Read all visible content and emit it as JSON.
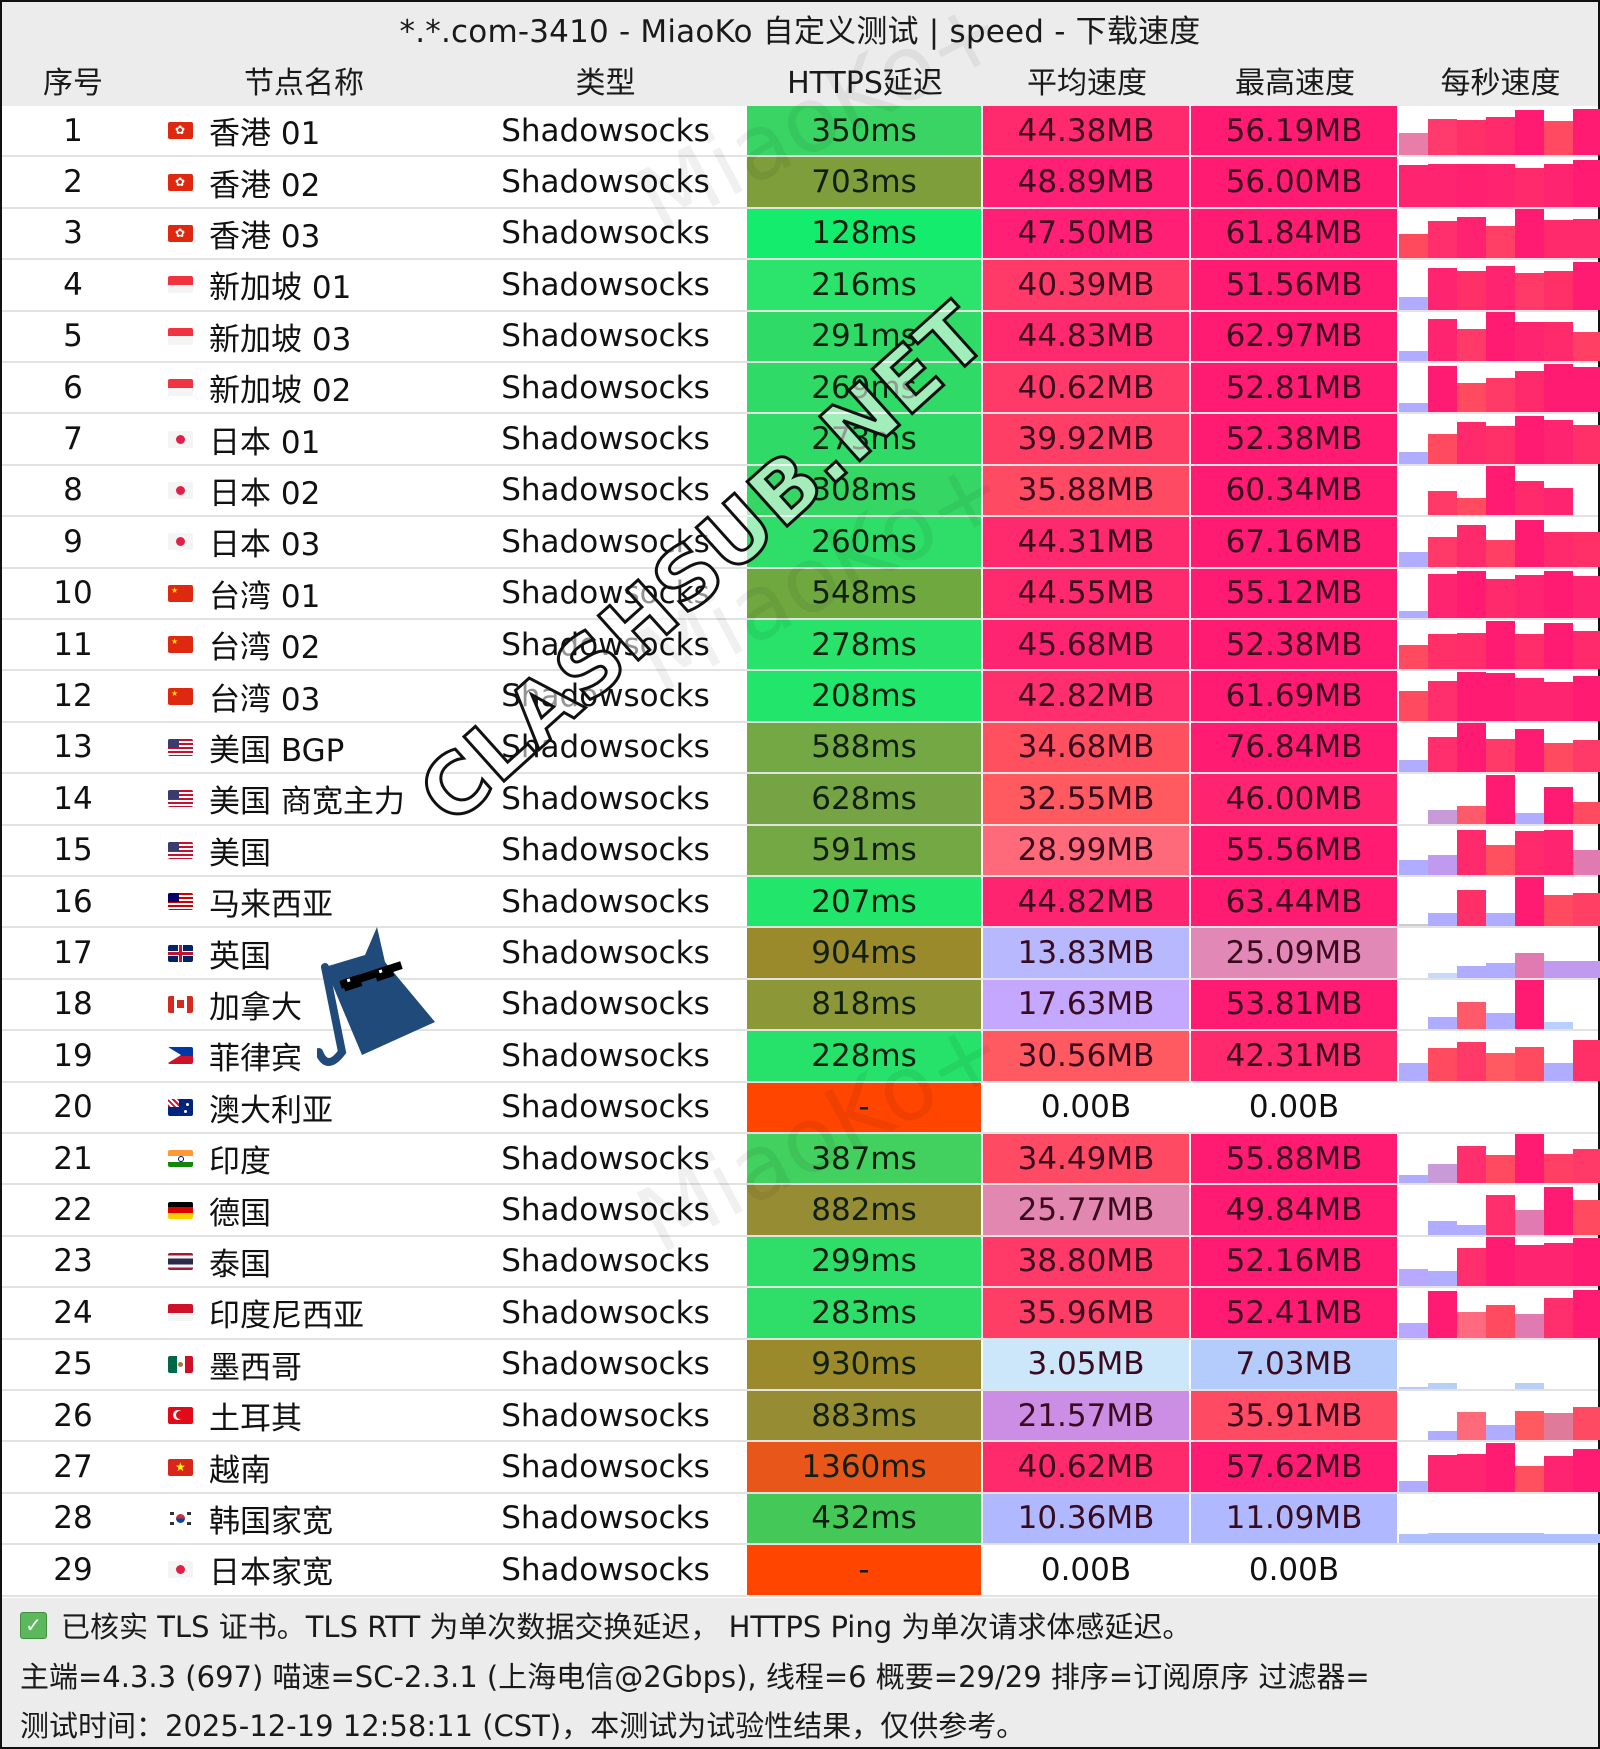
{
  "title": "*.*.com-3410 - MiaoKo 自定义测试 | speed - 下载速度",
  "columns": {
    "index": "序号",
    "name": "节点名称",
    "type": "类型",
    "ping": "HTTPS延迟",
    "avg": "平均速度",
    "max": "最高速度",
    "per_sec": "每秒速度"
  },
  "colors": {
    "ping_good": "#2fdc6a",
    "ping_mid": "#7ca83c",
    "ping_slow": "#9a8a2e",
    "ping_fail": "#ff4500",
    "speed_high": "#ff1f75",
    "speed_mid": "#ff5a6a",
    "speed_low": "#b4b4ff",
    "bar_low": "#b0acff"
  },
  "rows": [
    {
      "index": "1",
      "flag": "hk",
      "name": "香港 01",
      "type": "Shadowsocks",
      "ping": "350ms",
      "ping_color": "#3ad464",
      "avg": "44.38MB",
      "avg_color": "#ff2a6e",
      "max": "56.19MB",
      "max_color": "#ff1a72",
      "bars": [
        [
          0.45,
          "#e87ea8"
        ],
        [
          0.75,
          "#ff3a6c"
        ],
        [
          0.73,
          "#ff3068"
        ],
        [
          0.78,
          "#ff2a6c"
        ],
        [
          0.93,
          "#ff1a72"
        ],
        [
          0.7,
          "#ff4a62"
        ],
        [
          0.95,
          "#ff1a72"
        ]
      ]
    },
    {
      "index": "2",
      "flag": "hk",
      "name": "香港 02",
      "type": "Shadowsocks",
      "ping": "703ms",
      "ping_color": "#7d9e3a",
      "avg": "48.89MB",
      "avg_color": "#ff1f74",
      "max": "56.00MB",
      "max_color": "#ff1a72",
      "bars": [
        [
          0.85,
          "#ff2470"
        ],
        [
          0.87,
          "#ff2470"
        ],
        [
          0.87,
          "#ff2070"
        ],
        [
          0.87,
          "#ff2470"
        ],
        [
          0.8,
          "#ff2a6c"
        ],
        [
          0.88,
          "#ff2470"
        ],
        [
          0.95,
          "#ff1a72"
        ]
      ]
    },
    {
      "index": "3",
      "flag": "hk",
      "name": "香港 03",
      "type": "Shadowsocks",
      "ping": "128ms",
      "ping_color": "#14ec6e",
      "avg": "47.50MB",
      "avg_color": "#ff1f74",
      "max": "61.84MB",
      "max_color": "#ff1a72",
      "bars": [
        [
          0.5,
          "#ff4a5e"
        ],
        [
          0.75,
          "#ff2e6c"
        ],
        [
          0.85,
          "#ff2270"
        ],
        [
          0.65,
          "#ff4064"
        ],
        [
          1.0,
          "#ff1a72"
        ],
        [
          0.78,
          "#ff2a6c"
        ],
        [
          0.8,
          "#ff2a6c"
        ]
      ]
    },
    {
      "index": "4",
      "flag": "sg",
      "name": "新加坡 01",
      "type": "Shadowsocks",
      "ping": "216ms",
      "ping_color": "#2ce46c",
      "avg": "40.39MB",
      "avg_color": "#ff3a68",
      "max": "51.56MB",
      "max_color": "#ff1a72",
      "bars": [
        [
          0.25,
          "#b0acff"
        ],
        [
          0.85,
          "#ff2470"
        ],
        [
          0.78,
          "#ff3068"
        ],
        [
          0.88,
          "#ff2470"
        ],
        [
          0.75,
          "#ff3a68"
        ],
        [
          0.78,
          "#ff3068"
        ],
        [
          0.98,
          "#ff1a72"
        ]
      ]
    },
    {
      "index": "5",
      "flag": "sg",
      "name": "新加坡 03",
      "type": "Shadowsocks",
      "ping": "291ms",
      "ping_color": "#30da66",
      "avg": "44.83MB",
      "avg_color": "#ff2a6e",
      "max": "62.97MB",
      "max_color": "#ff1a72",
      "bars": [
        [
          0.2,
          "#b0acff"
        ],
        [
          0.85,
          "#ff2470"
        ],
        [
          0.65,
          "#ff3a68"
        ],
        [
          1.0,
          "#ff1a72"
        ],
        [
          0.8,
          "#ff2470"
        ],
        [
          0.8,
          "#ff2a6c"
        ],
        [
          0.6,
          "#ff4064"
        ]
      ]
    },
    {
      "index": "6",
      "flag": "sg",
      "name": "新加坡 02",
      "type": "Shadowsocks",
      "ping": "269ms",
      "ping_color": "#30da66",
      "avg": "40.62MB",
      "avg_color": "#ff3a68",
      "max": "52.81MB",
      "max_color": "#ff1a72",
      "bars": [
        [
          0.2,
          "#b0acff"
        ],
        [
          0.95,
          "#ff1a72"
        ],
        [
          0.6,
          "#ff4a60"
        ],
        [
          0.7,
          "#ff3a66"
        ],
        [
          0.85,
          "#ff2a6c"
        ],
        [
          0.98,
          "#ff1a72"
        ],
        [
          0.93,
          "#ff1a72"
        ]
      ]
    },
    {
      "index": "7",
      "flag": "jp",
      "name": "日本 01",
      "type": "Shadowsocks",
      "ping": "273ms",
      "ping_color": "#30da66",
      "avg": "39.92MB",
      "avg_color": "#ff3e66",
      "max": "52.38MB",
      "max_color": "#ff1a72",
      "bars": [
        [
          0.25,
          "#b0acff"
        ],
        [
          0.6,
          "#ff4a60"
        ],
        [
          0.85,
          "#ff2a6c"
        ],
        [
          0.78,
          "#ff3068"
        ],
        [
          0.98,
          "#ff1a72"
        ],
        [
          0.9,
          "#ff2470"
        ],
        [
          0.8,
          "#ff3068"
        ]
      ]
    },
    {
      "index": "8",
      "flag": "jp",
      "name": "日本 02",
      "type": "Shadowsocks",
      "ping": "308ms",
      "ping_color": "#36d664",
      "avg": "35.88MB",
      "avg_color": "#ff4a64",
      "max": "60.34MB",
      "max_color": "#ff1a72",
      "bars": [
        [
          0.0,
          "#ffffff"
        ],
        [
          0.5,
          "#ff3a68"
        ],
        [
          0.35,
          "#ff4a60"
        ],
        [
          1.0,
          "#ff1a72"
        ],
        [
          0.7,
          "#ff2a6c"
        ],
        [
          0.55,
          "#ff2470"
        ],
        [
          0.0,
          "#ffffff"
        ]
      ]
    },
    {
      "index": "9",
      "flag": "jp",
      "name": "日本 03",
      "type": "Shadowsocks",
      "ping": "260ms",
      "ping_color": "#2ede68",
      "avg": "44.31MB",
      "avg_color": "#ff2a6e",
      "max": "67.16MB",
      "max_color": "#ff1a72",
      "bars": [
        [
          0.3,
          "#b0acff"
        ],
        [
          0.6,
          "#ff3a68"
        ],
        [
          0.85,
          "#ff2a6c"
        ],
        [
          0.55,
          "#ff4064"
        ],
        [
          0.95,
          "#ff1a72"
        ],
        [
          0.7,
          "#ff2a6c"
        ],
        [
          0.7,
          "#ff3068"
        ]
      ]
    },
    {
      "index": "10",
      "flag": "cn",
      "name": "台湾 01",
      "type": "Shadowsocks",
      "ping": "548ms",
      "ping_color": "#70a840",
      "avg": "44.55MB",
      "avg_color": "#ff2a6e",
      "max": "55.12MB",
      "max_color": "#ff1a72",
      "bars": [
        [
          0.15,
          "#b0acff"
        ],
        [
          0.9,
          "#ff2470"
        ],
        [
          0.95,
          "#ff1a72"
        ],
        [
          0.8,
          "#ff2a6c"
        ],
        [
          0.88,
          "#ff2470"
        ],
        [
          0.95,
          "#ff1a72"
        ],
        [
          0.85,
          "#ff2470"
        ]
      ]
    },
    {
      "index": "11",
      "flag": "cn",
      "name": "台湾 02",
      "type": "Shadowsocks",
      "ping": "278ms",
      "ping_color": "#28e26a",
      "avg": "45.68MB",
      "avg_color": "#ff2470",
      "max": "52.38MB",
      "max_color": "#ff1a72",
      "bars": [
        [
          0.5,
          "#ff4a60"
        ],
        [
          0.72,
          "#ff3068"
        ],
        [
          0.75,
          "#ff2e6a"
        ],
        [
          0.98,
          "#ff1a72"
        ],
        [
          0.73,
          "#ff2e6a"
        ],
        [
          0.95,
          "#ff1a72"
        ],
        [
          0.78,
          "#ff2a6c"
        ]
      ]
    },
    {
      "index": "12",
      "flag": "cn",
      "name": "台湾 03",
      "type": "Shadowsocks",
      "ping": "208ms",
      "ping_color": "#22e66c",
      "avg": "42.82MB",
      "avg_color": "#ff2e6c",
      "max": "61.69MB",
      "max_color": "#ff1a72",
      "bars": [
        [
          0.6,
          "#ff4a60"
        ],
        [
          0.82,
          "#ff2e6c"
        ],
        [
          1.0,
          "#ff1a72"
        ],
        [
          0.98,
          "#ff1a72"
        ],
        [
          0.88,
          "#ff2470"
        ],
        [
          0.8,
          "#ff2470"
        ],
        [
          0.92,
          "#ff1a72"
        ]
      ]
    },
    {
      "index": "13",
      "flag": "us",
      "name": "美国 BGP",
      "type": "Shadowsocks",
      "ping": "588ms",
      "ping_color": "#74a844",
      "avg": "34.68MB",
      "avg_color": "#ff5060",
      "max": "76.84MB",
      "max_color": "#ff1a72",
      "bars": [
        [
          0.25,
          "#b0acff"
        ],
        [
          0.72,
          "#ff2e6c"
        ],
        [
          1.0,
          "#ff1a72"
        ],
        [
          0.68,
          "#ff3a68"
        ],
        [
          0.88,
          "#ff1a72"
        ],
        [
          0.6,
          "#ff4a60"
        ],
        [
          0.65,
          "#ff3a68"
        ]
      ]
    },
    {
      "index": "14",
      "flag": "us",
      "name": "美国 商宽主力",
      "type": "Shadowsocks",
      "ping": "628ms",
      "ping_color": "#76a444",
      "avg": "32.55MB",
      "avg_color": "#ff5a60",
      "max": "46.00MB",
      "max_color": "#ff2470",
      "bars": [
        [
          0.0,
          "#ffffff"
        ],
        [
          0.28,
          "#c89ad8"
        ],
        [
          0.35,
          "#ff5a6a"
        ],
        [
          1.0,
          "#ff1a72"
        ],
        [
          0.22,
          "#b0acff"
        ],
        [
          0.75,
          "#ff1a72"
        ],
        [
          0.45,
          "#ff4a60"
        ]
      ]
    },
    {
      "index": "15",
      "flag": "us",
      "name": "美国",
      "type": "Shadowsocks",
      "ping": "591ms",
      "ping_color": "#74a844",
      "avg": "28.99MB",
      "avg_color": "#ff6a7a",
      "max": "55.56MB",
      "max_color": "#ff1a72",
      "bars": [
        [
          0.3,
          "#b0acff"
        ],
        [
          0.4,
          "#c09aee"
        ],
        [
          0.92,
          "#ff2a6c"
        ],
        [
          0.62,
          "#ff5060"
        ],
        [
          0.9,
          "#ff2a6c"
        ],
        [
          0.92,
          "#ff2470"
        ],
        [
          0.5,
          "#e07ab0"
        ]
      ]
    },
    {
      "index": "16",
      "flag": "my",
      "name": "马来西亚",
      "type": "Shadowsocks",
      "ping": "207ms",
      "ping_color": "#22e66c",
      "avg": "44.82MB",
      "avg_color": "#ff2470",
      "max": "63.44MB",
      "max_color": "#ff1a72",
      "bars": [
        [
          0.05,
          "#cccccc"
        ],
        [
          0.28,
          "#b0acff"
        ],
        [
          0.75,
          "#ff3068"
        ],
        [
          0.28,
          "#b0acff"
        ],
        [
          1.0,
          "#ff1a72"
        ],
        [
          0.65,
          "#ff4a60"
        ],
        [
          0.68,
          "#ff4064"
        ]
      ]
    },
    {
      "index": "17",
      "flag": "gb",
      "name": "英国",
      "type": "Shadowsocks",
      "ping": "904ms",
      "ping_color": "#9a8a2c",
      "avg": "13.83MB",
      "avg_color": "#b8b8ff",
      "max": "25.09MB",
      "max_color": "#e288b6",
      "bars": [
        [
          0.0,
          "#ffffff"
        ],
        [
          0.1,
          "#c8d8ff"
        ],
        [
          0.25,
          "#b0acff"
        ],
        [
          0.3,
          "#b0acff"
        ],
        [
          0.5,
          "#e07ab0"
        ],
        [
          0.35,
          "#c09aee"
        ],
        [
          0.35,
          "#c09aee"
        ]
      ]
    },
    {
      "index": "18",
      "flag": "ca",
      "name": "加拿大",
      "type": "Shadowsocks",
      "ping": "818ms",
      "ping_color": "#8c9838",
      "avg": "17.63MB",
      "avg_color": "#c4a8ff",
      "max": "53.81MB",
      "max_color": "#ff1a72",
      "bars": [
        [
          0.0,
          "#ffffff"
        ],
        [
          0.25,
          "#b0acff"
        ],
        [
          0.55,
          "#ff5a6a"
        ],
        [
          0.33,
          "#b0acff"
        ],
        [
          1.0,
          "#ff1a72"
        ],
        [
          0.15,
          "#b8d0ff"
        ],
        [
          0.0,
          "#ffffff"
        ]
      ]
    },
    {
      "index": "19",
      "flag": "ph",
      "name": "菲律宾",
      "type": "Shadowsocks",
      "ping": "228ms",
      "ping_color": "#26e26a",
      "avg": "30.56MB",
      "avg_color": "#ff5a62",
      "max": "42.31MB",
      "max_color": "#ff2a6e",
      "bars": [
        [
          0.35,
          "#b0acff"
        ],
        [
          0.67,
          "#ff4a60"
        ],
        [
          0.78,
          "#ff3a68"
        ],
        [
          0.57,
          "#ff5a62"
        ],
        [
          0.68,
          "#ff4a60"
        ],
        [
          0.35,
          "#b0acff"
        ],
        [
          0.82,
          "#ff3068"
        ]
      ]
    },
    {
      "index": "20",
      "flag": "au",
      "name": "澳大利亚",
      "type": "Shadowsocks",
      "ping": "-",
      "ping_color": "#ff4500",
      "avg": "0.00B",
      "avg_color": "#ffffff",
      "max": "0.00B",
      "max_color": "#ffffff",
      "bars": []
    },
    {
      "index": "21",
      "flag": "in",
      "name": "印度",
      "type": "Shadowsocks",
      "ping": "387ms",
      "ping_color": "#42d05e",
      "avg": "34.49MB",
      "avg_color": "#ff4a64",
      "max": "55.88MB",
      "max_color": "#ff1a72",
      "bars": [
        [
          0.18,
          "#b0acff"
        ],
        [
          0.4,
          "#c89ad8"
        ],
        [
          0.77,
          "#ff2e6c"
        ],
        [
          0.57,
          "#ff4a60"
        ],
        [
          1.0,
          "#ff1a72"
        ],
        [
          0.6,
          "#ff4064"
        ],
        [
          0.7,
          "#ff3a68"
        ]
      ]
    },
    {
      "index": "22",
      "flag": "de",
      "name": "德国",
      "type": "Shadowsocks",
      "ping": "882ms",
      "ping_color": "#968c34",
      "avg": "25.77MB",
      "avg_color": "#e288b0",
      "max": "49.84MB",
      "max_color": "#ff1a72",
      "bars": [
        [
          0.0,
          "#ffffff"
        ],
        [
          0.28,
          "#b0acff"
        ],
        [
          0.2,
          "#b0acff"
        ],
        [
          0.82,
          "#ff2e6c"
        ],
        [
          0.5,
          "#e07ab0"
        ],
        [
          0.98,
          "#ff1a72"
        ],
        [
          0.7,
          "#ff4a60"
        ]
      ]
    },
    {
      "index": "23",
      "flag": "th",
      "name": "泰国",
      "type": "Shadowsocks",
      "ping": "299ms",
      "ping_color": "#2ede68",
      "avg": "38.80MB",
      "avg_color": "#ff3a68",
      "max": "52.16MB",
      "max_color": "#ff1a72",
      "bars": [
        [
          0.35,
          "#b8a8ff"
        ],
        [
          0.32,
          "#b0acff"
        ],
        [
          0.77,
          "#ff2e6c"
        ],
        [
          1.0,
          "#ff1a72"
        ],
        [
          0.85,
          "#ff2470"
        ],
        [
          0.88,
          "#ff2470"
        ],
        [
          0.98,
          "#ff1a72"
        ]
      ]
    },
    {
      "index": "24",
      "flag": "id",
      "name": "印度尼西亚",
      "type": "Shadowsocks",
      "ping": "283ms",
      "ping_color": "#2ede68",
      "avg": "35.96MB",
      "avg_color": "#ff3e66",
      "max": "52.41MB",
      "max_color": "#ff1a72",
      "bars": [
        [
          0.3,
          "#b8a8ff"
        ],
        [
          0.95,
          "#ff1a72"
        ],
        [
          0.52,
          "#ff6a80"
        ],
        [
          0.67,
          "#ff4a60"
        ],
        [
          0.48,
          "#e07ab0"
        ],
        [
          0.8,
          "#ff2e6c"
        ],
        [
          0.98,
          "#ff1a72"
        ]
      ]
    },
    {
      "index": "25",
      "flag": "mx",
      "name": "墨西哥",
      "type": "Shadowsocks",
      "ping": "930ms",
      "ping_color": "#9a8a2c",
      "avg": "3.05MB",
      "avg_color": "#cce6fa",
      "max": "7.03MB",
      "max_color": "#b4ccfc",
      "bars": [
        [
          0.05,
          "#b8c8f0"
        ],
        [
          0.12,
          "#b8d0f8"
        ],
        [
          0.0,
          "#ffffff"
        ],
        [
          0.0,
          "#ffffff"
        ],
        [
          0.12,
          "#b8d0f8"
        ],
        [
          0.0,
          "#ffffff"
        ],
        [
          0.0,
          "#ffffff"
        ]
      ]
    },
    {
      "index": "26",
      "flag": "tr",
      "name": "土耳其",
      "type": "Shadowsocks",
      "ping": "883ms",
      "ping_color": "#968c34",
      "avg": "21.57MB",
      "avg_color": "#cc8ee4",
      "max": "35.91MB",
      "max_color": "#ff4a64",
      "bars": [
        [
          0.0,
          "#ffffff"
        ],
        [
          0.2,
          "#b0acff"
        ],
        [
          0.58,
          "#ff6a7a"
        ],
        [
          0.32,
          "#b0acff"
        ],
        [
          0.6,
          "#ff5a60"
        ],
        [
          0.55,
          "#e07a9a"
        ],
        [
          0.68,
          "#ff4a64"
        ]
      ]
    },
    {
      "index": "27",
      "flag": "vn",
      "name": "越南",
      "type": "Shadowsocks",
      "ping": "1360ms",
      "ping_color": "#e8561a",
      "avg": "40.62MB",
      "avg_color": "#ff2a6c",
      "max": "57.62MB",
      "max_color": "#ff1a72",
      "bars": [
        [
          0.22,
          "#b0acff"
        ],
        [
          0.75,
          "#ff2470"
        ],
        [
          0.78,
          "#ff2470"
        ],
        [
          1.0,
          "#ff1a72"
        ],
        [
          0.52,
          "#ff5060"
        ],
        [
          0.73,
          "#ff2470"
        ],
        [
          0.88,
          "#ff1a72"
        ]
      ]
    },
    {
      "index": "28",
      "flag": "kr",
      "name": "韩国家宽",
      "type": "Shadowsocks",
      "ping": "432ms",
      "ping_color": "#44c858",
      "avg": "10.36MB",
      "avg_color": "#b0b8ff",
      "max": "11.09MB",
      "max_color": "#b0b8ff",
      "bars": [
        [
          0.18,
          "#b0c0ff"
        ],
        [
          0.2,
          "#b0c0ff"
        ],
        [
          0.2,
          "#b0c0ff"
        ],
        [
          0.2,
          "#b0c0ff"
        ],
        [
          0.2,
          "#b0c0ff"
        ],
        [
          0.18,
          "#b0c0ff"
        ],
        [
          0.18,
          "#b0c0ff"
        ]
      ]
    },
    {
      "index": "29",
      "flag": "jp",
      "name": "日本家宽",
      "type": "Shadowsocks",
      "ping": "-",
      "ping_color": "#ff4500",
      "avg": "0.00B",
      "avg_color": "#ffffff",
      "max": "0.00B",
      "max_color": "#ffffff",
      "bars": []
    }
  ],
  "footer": {
    "line1": "已核实 TLS 证书。TLS RTT 为单次数据交换延迟， HTTPS Ping 为单次请求体感延迟。",
    "line2": "主端=4.3.3 (697) 喵速=SC-2.3.1 (上海电信@2Gbps), 线程=6 概要=29/29 排序=订阅原序 过滤器=",
    "line3": "测试时间：2025-12-19 12:58:11 (CST)，本测试为试验性结果，仅供参考。"
  },
  "watermarks": {
    "overlay": "CLASHSUB.NET",
    "background": "MiaoKo+"
  }
}
